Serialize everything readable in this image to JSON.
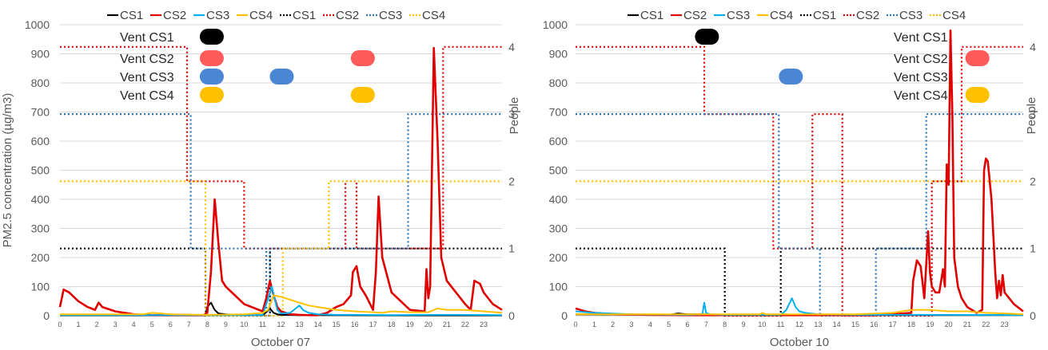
{
  "chart_data": [
    {
      "type": "line",
      "xlabel": "October 07",
      "ylabel": "PM2.5 concentration (µg/m3)",
      "ylabel_y2": "People",
      "xlim": [
        0,
        24
      ],
      "ylim": [
        0,
        1000
      ],
      "y2lim": [
        0,
        4.33
      ],
      "x_ticks": [
        0,
        1,
        2,
        3,
        4,
        5,
        6,
        7,
        8,
        9,
        10,
        11,
        12,
        13,
        14,
        15,
        16,
        17,
        18,
        19,
        20,
        21,
        22,
        23
      ],
      "y_ticks": [
        0,
        100,
        200,
        300,
        400,
        500,
        600,
        700,
        800,
        900,
        1000
      ],
      "y2_ticks": [
        0,
        1,
        2,
        3,
        4
      ],
      "grid": true,
      "legend": "top",
      "legend_labels": [
        "CS1",
        "CS2",
        "CS3",
        "CS4",
        "CS1",
        "CS2",
        "CS3",
        "CS4"
      ],
      "series": [
        {
          "name": "CS1",
          "kind": "pm",
          "color": "#000000",
          "x": [
            0,
            7.9,
            8.0,
            8.2,
            8.4,
            8.6,
            9.0,
            10,
            11,
            11.2,
            11.4,
            11.6,
            11.8,
            12,
            13,
            14,
            18,
            20,
            24
          ],
          "y": [
            1,
            1,
            30,
            45,
            20,
            8,
            5,
            2,
            2,
            12,
            25,
            10,
            5,
            3,
            2,
            2,
            1,
            1,
            1
          ]
        },
        {
          "name": "CS2",
          "kind": "pm",
          "color": "#e00000",
          "x": [
            0,
            0.2,
            0.5,
            1,
            1.5,
            1.9,
            2.1,
            2.3,
            3,
            4,
            4.5,
            5,
            6,
            7,
            7.8,
            8.0,
            8.2,
            8.4,
            8.6,
            8.8,
            9.0,
            10,
            11,
            11.2,
            11.4,
            11.6,
            11.8,
            12,
            12.5,
            13,
            13.5,
            14,
            14.5,
            15,
            15.4,
            15.8,
            15.9,
            16.0,
            16.1,
            16.3,
            16.6,
            17,
            17.15,
            17.3,
            17.5,
            18,
            19,
            19.8,
            19.9,
            20.0,
            20.1,
            20.3,
            20.5,
            20.7,
            21,
            21.5,
            22,
            22.3,
            22.5,
            22.8,
            23,
            23.5,
            24
          ],
          "y": [
            30,
            90,
            80,
            50,
            30,
            20,
            45,
            30,
            15,
            5,
            3,
            2,
            2,
            2,
            2,
            10,
            150,
            400,
            250,
            120,
            100,
            40,
            15,
            60,
            120,
            70,
            30,
            15,
            5,
            3,
            2,
            2,
            10,
            30,
            40,
            70,
            150,
            160,
            170,
            100,
            70,
            20,
            150,
            410,
            200,
            80,
            20,
            15,
            160,
            60,
            100,
            920,
            600,
            200,
            120,
            80,
            40,
            20,
            120,
            110,
            80,
            40,
            20
          ]
        },
        {
          "name": "CS3",
          "kind": "pm",
          "color": "#00b0f0",
          "x": [
            0,
            8,
            11,
            11.3,
            11.5,
            11.8,
            12,
            12.5,
            12.8,
            13,
            13.2,
            13.5,
            14,
            15,
            16,
            18,
            20,
            22,
            24
          ],
          "y": [
            2,
            2,
            2,
            60,
            100,
            20,
            8,
            10,
            25,
            35,
            20,
            10,
            5,
            3,
            3,
            2,
            3,
            3,
            2
          ]
        },
        {
          "name": "CS4",
          "kind": "pm",
          "color": "#ffc000",
          "x": [
            0,
            4.5,
            5,
            5.5,
            6,
            8,
            10,
            11,
            11.3,
            11.6,
            12,
            12.5,
            13,
            13.5,
            14,
            14.5,
            15,
            16,
            17,
            17.5,
            18,
            19,
            20,
            20.5,
            21,
            22,
            23,
            24
          ],
          "y": [
            5,
            5,
            10,
            8,
            5,
            3,
            5,
            10,
            20,
            70,
            65,
            55,
            45,
            35,
            30,
            25,
            20,
            15,
            12,
            10,
            15,
            12,
            12,
            25,
            20,
            20,
            15,
            10
          ]
        },
        {
          "name": "CS1",
          "kind": "people",
          "color": "#000000",
          "x": [
            0,
            7.9,
            7.9,
            11.4,
            11.4,
            24
          ],
          "y": [
            1,
            1,
            0,
            0,
            1,
            1
          ]
        },
        {
          "name": "CS2",
          "kind": "people",
          "color": "#e00000",
          "x": [
            0,
            6.9,
            6.9,
            10.0,
            10.0,
            15.5,
            15.5,
            16.1,
            16.1,
            20.8,
            20.8,
            24
          ],
          "y": [
            4,
            4,
            2,
            2,
            1,
            1,
            2,
            2,
            1,
            1,
            4,
            4
          ]
        },
        {
          "name": "CS3",
          "kind": "people",
          "color": "#2e75b6",
          "x": [
            0,
            7.1,
            7.1,
            11.2,
            11.2,
            11.4,
            11.4,
            15.0,
            15.0,
            18.9,
            18.9,
            24
          ],
          "y": [
            3,
            3,
            1,
            1,
            0,
            0,
            1,
            1,
            1,
            1,
            3,
            3
          ]
        },
        {
          "name": "CS4",
          "kind": "people",
          "color": "#ffc000",
          "x": [
            0,
            7.9,
            7.9,
            11.4,
            11.4,
            12.1,
            12.1,
            14.6,
            14.6,
            24
          ],
          "y": [
            2,
            2,
            0,
            0,
            0,
            0,
            1,
            1,
            2,
            2
          ]
        }
      ],
      "vents": [
        {
          "label": "Vent CS1",
          "color": "#000000",
          "level": 0,
          "positions": [
            8.2
          ]
        },
        {
          "label": "Vent CS2",
          "color": "#ff5b5b",
          "level": 1,
          "positions": [
            8.2,
            16.4
          ]
        },
        {
          "label": "Vent CS3",
          "color": "#4a86d4",
          "level": 2,
          "positions": [
            8.2,
            12.0
          ]
        },
        {
          "label": "Vent CS4",
          "color": "#ffc000",
          "level": 3,
          "positions": [
            8.2,
            16.4
          ]
        }
      ]
    },
    {
      "type": "line",
      "xlabel": "October 10",
      "ylabel_y2": "People",
      "xlim": [
        0,
        24
      ],
      "ylim": [
        0,
        1000
      ],
      "y2lim": [
        0,
        4.33
      ],
      "x_ticks": [
        0,
        1,
        2,
        3,
        4,
        5,
        6,
        7,
        8,
        9,
        10,
        11,
        12,
        13,
        14,
        15,
        16,
        17,
        18,
        19,
        20,
        21,
        22,
        23
      ],
      "y_ticks": [
        0,
        100,
        200,
        300,
        400,
        500,
        600,
        700,
        800,
        900,
        1000
      ],
      "y2_ticks": [
        0,
        1,
        2,
        3,
        4
      ],
      "grid": true,
      "legend": "top",
      "legend_labels": [
        "CS1",
        "CS2",
        "CS3",
        "CS4",
        "CS1",
        "CS2",
        "CS3",
        "CS4"
      ],
      "series": [
        {
          "name": "CS1",
          "kind": "pm",
          "color": "#000000",
          "x": [
            0,
            5,
            5.5,
            6,
            7,
            8,
            9,
            10,
            11,
            12,
            13,
            14,
            15,
            16,
            18,
            20,
            24
          ],
          "y": [
            5,
            3,
            8,
            5,
            5,
            3,
            2,
            2,
            2,
            2,
            2,
            2,
            2,
            2,
            2,
            2,
            2
          ]
        },
        {
          "name": "CS2",
          "kind": "pm",
          "color": "#e00000",
          "x": [
            0,
            0.5,
            1,
            2,
            4,
            6,
            8,
            10,
            12,
            14,
            16,
            17,
            18.0,
            18.1,
            18.3,
            18.5,
            18.7,
            18.9,
            19.0,
            19.1,
            19.3,
            19.5,
            19.7,
            19.8,
            19.9,
            20.0,
            20.1,
            20.2,
            20.3,
            20.5,
            20.7,
            21,
            21.5,
            21.8,
            21.9,
            22.0,
            22.1,
            22.3,
            22.5,
            22.6,
            22.7,
            22.8,
            22.9,
            23,
            23.5,
            24
          ],
          "y": [
            25,
            15,
            10,
            5,
            3,
            2,
            2,
            2,
            2,
            2,
            2,
            5,
            10,
            120,
            190,
            170,
            60,
            290,
            150,
            100,
            80,
            80,
            160,
            100,
            520,
            450,
            980,
            700,
            200,
            100,
            60,
            30,
            10,
            20,
            500,
            540,
            530,
            400,
            150,
            60,
            120,
            70,
            140,
            80,
            40,
            15
          ]
        },
        {
          "name": "CS3",
          "kind": "pm",
          "color": "#00b0f0",
          "x": [
            0,
            1,
            3,
            6,
            6.8,
            6.9,
            7.0,
            7.2,
            8,
            10,
            11,
            11.3,
            11.6,
            11.8,
            12,
            12.3,
            13,
            15,
            18,
            20,
            24
          ],
          "y": [
            15,
            10,
            5,
            3,
            5,
            45,
            10,
            5,
            3,
            3,
            3,
            20,
            60,
            30,
            15,
            10,
            5,
            3,
            3,
            3,
            2
          ]
        },
        {
          "name": "CS4",
          "kind": "pm",
          "color": "#ffc000",
          "x": [
            0,
            5,
            9.9,
            10,
            10.2,
            11,
            13,
            15,
            17,
            18,
            19,
            20,
            21,
            22,
            23,
            24
          ],
          "y": [
            5,
            5,
            5,
            10,
            5,
            5,
            5,
            5,
            10,
            20,
            20,
            15,
            15,
            10,
            8,
            5
          ]
        },
        {
          "name": "CS1",
          "kind": "people",
          "color": "#000000",
          "x": [
            0,
            8.0,
            8.0,
            11.0,
            11.0,
            15.5,
            15.5,
            24
          ],
          "y": [
            1,
            1,
            0,
            0,
            1,
            1,
            1,
            1
          ]
        },
        {
          "name": "CS2",
          "kind": "people",
          "color": "#e00000",
          "x": [
            0,
            6.9,
            6.9,
            10.6,
            10.6,
            12.7,
            12.7,
            14.3,
            14.3,
            19.1,
            19.1,
            20.7,
            20.7,
            24
          ],
          "y": [
            4,
            4,
            3,
            3,
            1,
            1,
            3,
            3,
            0,
            0,
            2,
            2,
            4,
            4
          ]
        },
        {
          "name": "CS3",
          "kind": "people",
          "color": "#2e75b6",
          "x": [
            0,
            10.9,
            10.9,
            13.1,
            13.1,
            16.1,
            16.1,
            18.8,
            18.8,
            24
          ],
          "y": [
            3,
            3,
            1,
            1,
            0,
            0,
            1,
            1,
            3,
            3
          ]
        },
        {
          "name": "CS4",
          "kind": "people",
          "color": "#ffc000",
          "x": [
            0,
            10.9,
            10.9,
            24
          ],
          "y": [
            2,
            2,
            2,
            2
          ]
        }
      ],
      "vents": [
        {
          "label": "Vent CS1",
          "color": "#000000",
          "level": 0,
          "positions": [
            7.0
          ]
        },
        {
          "label": "Vent CS2",
          "color": "#ff5b5b",
          "level": 1,
          "positions": [
            21.5
          ]
        },
        {
          "label": "Vent CS3",
          "color": "#4a86d4",
          "level": 2,
          "positions": [
            11.5
          ]
        },
        {
          "label": "Vent CS4",
          "color": "#ffc000",
          "level": 3,
          "positions": [
            21.5
          ]
        }
      ]
    }
  ]
}
